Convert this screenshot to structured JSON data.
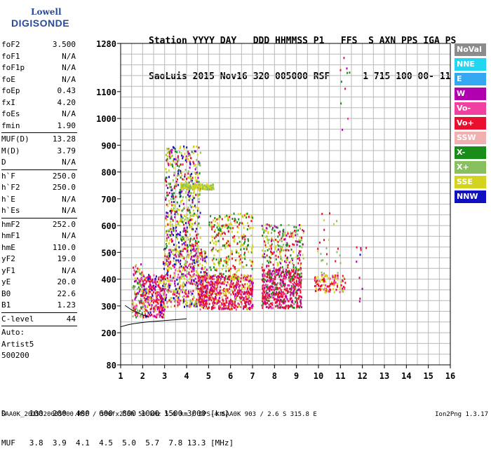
{
  "logo": {
    "line1": "Lowell",
    "line2": "DIGISONDE"
  },
  "header": {
    "line1": "Station YYYY DAY   DDD HHMMSS P1   FFS  S AXN PPS IGA PS",
    "line2": "SaoLuis 2015 Nov16 320 005000 RSF      1 715 100 00- 11"
  },
  "params": [
    {
      "label": "foF2",
      "value": "3.500"
    },
    {
      "label": "foF1",
      "value": "N/A"
    },
    {
      "label": "foF1p",
      "value": "N/A"
    },
    {
      "label": "foE",
      "value": "N/A"
    },
    {
      "label": "foEp",
      "value": "0.43"
    },
    {
      "label": "fxI",
      "value": "4.20"
    },
    {
      "label": "foEs",
      "value": "N/A"
    },
    {
      "label": "fmin",
      "value": "1.90"
    },
    {
      "sep": true
    },
    {
      "label": "MUF(D)",
      "value": "13.28"
    },
    {
      "label": "M(D)",
      "value": "3.79"
    },
    {
      "label": "D",
      "value": "N/A"
    },
    {
      "sep": true
    },
    {
      "label": "h`F",
      "value": "250.0"
    },
    {
      "label": "h`F2",
      "value": "250.0"
    },
    {
      "label": "h`E",
      "value": "N/A"
    },
    {
      "label": "h`Es",
      "value": "N/A"
    },
    {
      "sep": true
    },
    {
      "label": "hmF2",
      "value": "252.0"
    },
    {
      "label": "hmF1",
      "value": "N/A"
    },
    {
      "label": "hmE",
      "value": "110.0"
    },
    {
      "label": "yF2",
      "value": "19.0"
    },
    {
      "label": "yF1",
      "value": "N/A"
    },
    {
      "label": "yE",
      "value": "20.0"
    },
    {
      "label": "B0",
      "value": "22.6"
    },
    {
      "label": "B1",
      "value": "1.23"
    },
    {
      "sep": true
    },
    {
      "label": "C-level",
      "value": "44"
    },
    {
      "sep": true
    },
    {
      "label": "Auto:",
      "value": ""
    },
    {
      "label": "Artist5",
      "value": ""
    },
    {
      "label": "500200",
      "value": ""
    }
  ],
  "legend": [
    {
      "label": "NoVal",
      "color": "#8c8c8c"
    },
    {
      "label": "NNE",
      "color": "#22d6f2"
    },
    {
      "label": "E",
      "color": "#33a8f0"
    },
    {
      "label": "W",
      "color": "#b000b0"
    },
    {
      "label": "Vo-",
      "color": "#f040a0"
    },
    {
      "label": "Vo+",
      "color": "#e8102e"
    },
    {
      "label": "SSW",
      "color": "#f0b0b0"
    },
    {
      "label": "X-",
      "color": "#1a8c1a"
    },
    {
      "label": "X+",
      "color": "#88c060"
    },
    {
      "label": "SSE",
      "color": "#d4d420"
    },
    {
      "label": "NNW",
      "color": "#1010c0"
    }
  ],
  "footer": {
    "d_line": "D     100  200  400  600  800 1000 1500 3000 [km]",
    "muf_line": "MUF   3.8  3.9  4.1  4.5  5.0  5.7  7.8 13.3 [MHz]",
    "file_line": "SAA0K_2015320005000.RSF / 300fx256h 50 kHz 5.0 km / DPS-4 SAA0K 903 / 2.6 S 315.8 E",
    "version": "Ion2Png 1.3.17"
  },
  "chart_data": {
    "type": "scatter",
    "xlim": [
      1,
      16
    ],
    "ylim": [
      80,
      1280
    ],
    "x_ticks": [
      "1",
      "2",
      "3",
      "4",
      "5",
      "6",
      "7",
      "8",
      "9",
      "10",
      "11",
      "12",
      "13",
      "14",
      "15",
      "16"
    ],
    "y_ticks": [
      {
        "value": 80,
        "label": "80"
      },
      {
        "value": 200,
        "label": "200"
      },
      {
        "value": 300,
        "label": "300"
      },
      {
        "value": 400,
        "label": "400"
      },
      {
        "value": 500,
        "label": "500"
      },
      {
        "value": 600,
        "label": "600"
      },
      {
        "value": 700,
        "label": "700"
      },
      {
        "value": 800,
        "label": "800"
      },
      {
        "value": 900,
        "label": "900"
      },
      {
        "value": 1000,
        "label": "1000"
      },
      {
        "value": 1100,
        "label": "1100"
      },
      {
        "value": 1280,
        "label": "1280"
      }
    ],
    "y_grid_step": 40,
    "x_grid_step": 0.5,
    "grid": true,
    "trace": {
      "name": "h`F trace",
      "x": [
        1.0,
        1.3,
        1.6,
        1.9,
        2.2,
        2.5,
        2.8,
        3.1,
        3.4,
        3.7,
        4.0
      ],
      "y": [
        222,
        229,
        234,
        237,
        240,
        242,
        244,
        246,
        248,
        250,
        252
      ]
    },
    "trace2": {
      "x": [
        1.2,
        1.5,
        1.9,
        2.3
      ],
      "y": [
        302,
        285,
        270,
        258
      ]
    },
    "echo_regions": [
      {
        "x": [
          1.5,
          2.0
        ],
        "y": [
          260,
          460
        ],
        "n": 140,
        "colors": [
          "#e8102e",
          "#d4d420",
          "#b000b0",
          "#1a8c1a",
          "#f040a0",
          "#88c060"
        ]
      },
      {
        "x": [
          2.0,
          3.0
        ],
        "y": [
          260,
          420
        ],
        "n": 300,
        "colors": [
          "#e8102e",
          "#e8102e",
          "#d4d420",
          "#b000b0",
          "#1010c0",
          "#f040a0"
        ]
      },
      {
        "x": [
          2.9,
          4.9
        ],
        "y": [
          300,
          520
        ],
        "n": 550,
        "colors": [
          "#d4d420",
          "#d4d420",
          "#e8102e",
          "#b000b0",
          "#88c060",
          "#1010c0",
          "#f040a0"
        ]
      },
      {
        "x": [
          3.0,
          4.6
        ],
        "y": [
          520,
          900
        ],
        "n": 520,
        "colors": [
          "#d4d420",
          "#d4d420",
          "#e8102e",
          "#1a8c1a",
          "#b000b0",
          "#88c060",
          "#1010c0"
        ]
      },
      {
        "x": [
          3.7,
          5.2
        ],
        "y": [
          738,
          758
        ],
        "n": 160,
        "colors": [
          "#d4d420",
          "#d4d420",
          "#88c060"
        ]
      },
      {
        "x": [
          4.5,
          7.0
        ],
        "y": [
          290,
          420
        ],
        "n": 600,
        "colors": [
          "#e8102e",
          "#e8102e",
          "#e8102e",
          "#f040a0",
          "#d4d420",
          "#b000b0"
        ]
      },
      {
        "x": [
          5.0,
          7.0
        ],
        "y": [
          400,
          650
        ],
        "n": 300,
        "colors": [
          "#d4d420",
          "#d4d420",
          "#1a8c1a",
          "#e8102e"
        ]
      },
      {
        "x": [
          7.4,
          9.2
        ],
        "y": [
          295,
          440
        ],
        "n": 520,
        "colors": [
          "#e8102e",
          "#e8102e",
          "#e8102e",
          "#f040a0",
          "#1a8c1a",
          "#b000b0"
        ]
      },
      {
        "x": [
          7.4,
          9.3
        ],
        "y": [
          420,
          610
        ],
        "n": 260,
        "colors": [
          "#d4d420",
          "#e8102e",
          "#1a8c1a",
          "#88c060",
          "#b000b0"
        ]
      },
      {
        "x": [
          9.8,
          11.2
        ],
        "y": [
          355,
          420
        ],
        "n": 120,
        "colors": [
          "#e8102e",
          "#e8102e",
          "#f040a0",
          "#d4d420"
        ]
      },
      {
        "x": [
          9.9,
          11.0
        ],
        "y": [
          420,
          650
        ],
        "n": 25,
        "colors": [
          "#d4d420",
          "#e8102e",
          "#88c060"
        ]
      },
      {
        "x": [
          11.5,
          12.2
        ],
        "y": [
          290,
          560
        ],
        "n": 10,
        "colors": [
          "#b000b0",
          "#e8102e",
          "#1010c0"
        ]
      },
      {
        "x": [
          10.9,
          11.4
        ],
        "y": [
          950,
          1240
        ],
        "n": 10,
        "colors": [
          "#e8102e",
          "#f040a0",
          "#1a8c1a",
          "#b000b0"
        ]
      }
    ]
  }
}
